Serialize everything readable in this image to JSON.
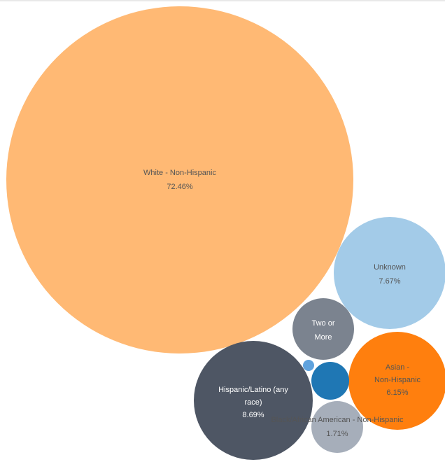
{
  "chart_data": {
    "type": "bubble",
    "title": "",
    "items": [
      {
        "label": "White - Non-Hispanic",
        "label_lines": [
          "White - Non-Hispanic"
        ],
        "value_label": "72.46%",
        "value": 72.46,
        "color": "#FFB974",
        "text_color": "#555555"
      },
      {
        "label": "Unknown",
        "label_lines": [
          "Unknown"
        ],
        "value_label": "7.67%",
        "value": 7.67,
        "color": "#A3CBE8",
        "text_color": "#555555"
      },
      {
        "label": "Hispanic/Latino (any race)",
        "label_lines": [
          "Hispanic/Latino (any",
          "race)"
        ],
        "value_label": "8.69%",
        "value": 8.69,
        "color": "#4E5664",
        "text_color": "#ffffff"
      },
      {
        "label": "Asian - Non-Hispanic",
        "label_lines": [
          "Asian -",
          "Non-Hispanic"
        ],
        "value_label": "6.15%",
        "value": 6.15,
        "color": "#FF7F0E",
        "text_color": "#555555"
      },
      {
        "label": "Two or More",
        "label_lines": [
          "Two or",
          "More"
        ],
        "value_label": "",
        "value": 2.5,
        "color": "#7B838F",
        "text_color": "#ffffff"
      },
      {
        "label": "Black/African American - Non-Hispanic",
        "label_lines": [
          "Black/African American - Non-Hispanic"
        ],
        "value_label": "1.71%",
        "value": 1.71,
        "color": "#A6AEBA",
        "text_color": "#555555"
      },
      {
        "label": "",
        "label_lines": [],
        "value_label": "",
        "value": 1.4,
        "color": "#1F77B4",
        "text_color": "#ffffff"
      },
      {
        "label": "",
        "label_lines": [],
        "value_label": "",
        "value": 0.12,
        "color": "#5FA2DD",
        "text_color": "#ffffff"
      }
    ]
  }
}
